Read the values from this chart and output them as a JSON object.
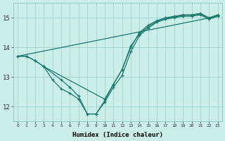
{
  "xlabel": "Humidex (Indice chaleur)",
  "bg_color": "#cceee8",
  "line_color": "#1a7a6e",
  "grid_color": "#99cccc",
  "xlim": [
    -0.5,
    23.5
  ],
  "ylim": [
    11.5,
    15.5
  ],
  "yticks": [
    12,
    13,
    14,
    15
  ],
  "xticks": [
    0,
    1,
    2,
    3,
    4,
    5,
    6,
    7,
    8,
    9,
    10,
    11,
    12,
    13,
    14,
    15,
    16,
    17,
    18,
    19,
    20,
    21,
    22,
    23
  ],
  "series": [
    {
      "x": [
        0,
        23
      ],
      "y": [
        13.7,
        15.05
      ],
      "markers": false
    },
    {
      "x": [
        0,
        1,
        2,
        3,
        4,
        5,
        6,
        7,
        8,
        9,
        10,
        11,
        12,
        13,
        14,
        15,
        16,
        17,
        18,
        19,
        20,
        21,
        22,
        23
      ],
      "y": [
        13.7,
        13.7,
        13.55,
        13.35,
        12.9,
        12.6,
        12.45,
        12.25,
        11.75,
        11.75,
        12.15,
        12.65,
        13.05,
        13.85,
        14.4,
        14.65,
        14.85,
        14.95,
        15.0,
        15.05,
        15.05,
        15.1,
        14.95,
        15.05
      ],
      "markers": true
    },
    {
      "x": [
        0,
        1,
        2,
        3,
        10,
        11,
        12,
        13,
        14,
        15,
        16,
        17,
        18,
        19,
        20,
        21,
        22,
        23
      ],
      "y": [
        13.7,
        13.7,
        13.55,
        13.35,
        12.25,
        12.75,
        13.25,
        14.0,
        14.5,
        14.75,
        14.9,
        15.0,
        15.05,
        15.1,
        15.1,
        15.15,
        15.0,
        15.1
      ],
      "markers": true
    },
    {
      "x": [
        3,
        5,
        6,
        7,
        8,
        9,
        10,
        11,
        12,
        13,
        14,
        15,
        16,
        17,
        18,
        19,
        20,
        21,
        22,
        23
      ],
      "y": [
        13.35,
        12.9,
        12.65,
        12.35,
        11.75,
        11.75,
        12.2,
        12.75,
        13.25,
        14.05,
        14.45,
        14.7,
        14.88,
        14.97,
        15.03,
        15.07,
        15.08,
        15.12,
        14.97,
        15.07
      ],
      "markers": true
    }
  ]
}
